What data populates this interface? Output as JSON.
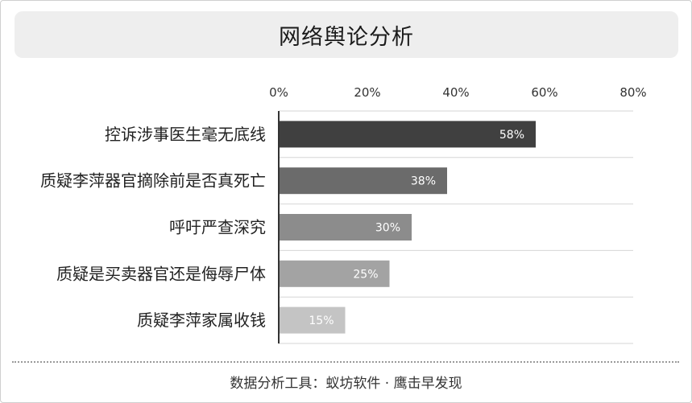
{
  "chart_data": {
    "type": "bar",
    "orientation": "horizontal",
    "title": "网络舆论分析",
    "categories": [
      "控诉涉事医生毫无底线",
      "质疑李萍器官摘除前是否真死亡",
      "呼吁严查深究",
      "质疑是买卖器官还是侮辱尸体",
      "质疑李萍家属收钱"
    ],
    "values": [
      58,
      38,
      30,
      25,
      15
    ],
    "value_labels": [
      "58%",
      "38%",
      "30%",
      "25%",
      "15%"
    ],
    "xlim": [
      0,
      80
    ],
    "x_ticks": [
      "0%",
      "20%",
      "40%",
      "60%",
      "80%"
    ],
    "axis_position": "top",
    "grid": true,
    "bar_colors": [
      "#404040",
      "#6b6b6b",
      "#8c8c8c",
      "#a3a3a3",
      "#c4c4c4"
    ]
  },
  "footer": {
    "text": "数据分析工具：蚁坊软件 · 鹰击早发现"
  }
}
